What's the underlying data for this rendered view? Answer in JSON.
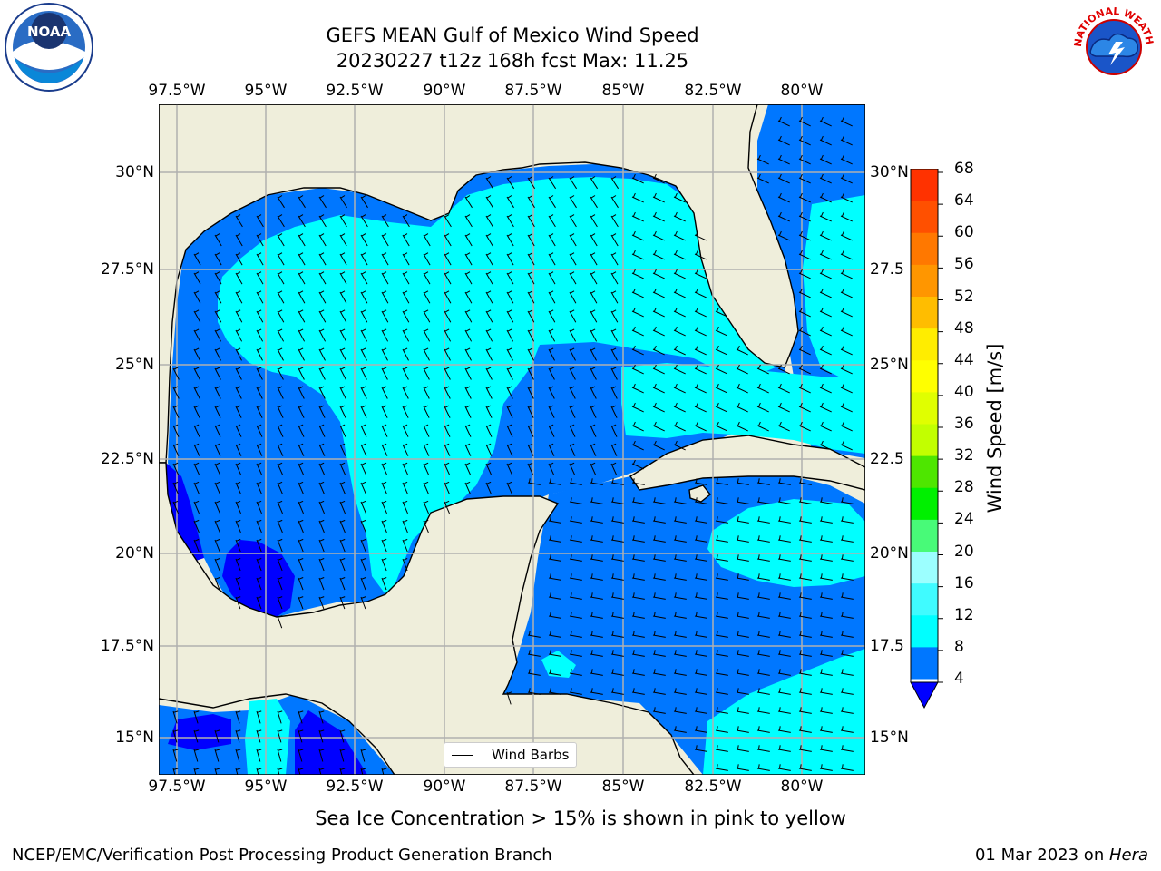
{
  "title": {
    "line1": "GEFS MEAN Gulf of Mexico Wind Speed",
    "line2": "20230227 t12z 168h fcst   Max: 11.25"
  },
  "map": {
    "lon_range": [
      -98,
      -78.2
    ],
    "lat_range": [
      14,
      31.8
    ],
    "lon_ticks": [
      "97.5°W",
      "95°W",
      "92.5°W",
      "90°W",
      "87.5°W",
      "85°W",
      "82.5°W",
      "80°W"
    ],
    "lat_ticks_left": [
      "30°N",
      "27.5°N",
      "25°N",
      "22.5°N",
      "20°N",
      "17.5°N",
      "15°N"
    ],
    "lat_ticks_right": [
      "30°N",
      "27.5",
      "25°N",
      "22.5",
      "20°N",
      "17.5",
      "15°N"
    ],
    "land_color": "#efeedb",
    "grid_color": "#b0b0b0"
  },
  "legend": {
    "label": "Wind Barbs"
  },
  "colorbar": {
    "label": "Wind Speed [m/s]",
    "levels": [
      "4",
      "8",
      "12",
      "16",
      "20",
      "24",
      "28",
      "32",
      "36",
      "40",
      "44",
      "48",
      "52",
      "56",
      "60",
      "64",
      "68"
    ],
    "colors": [
      "#0077ff",
      "#00ffff",
      "#40fbff",
      "#9cffff",
      "#48fa78",
      "#00f000",
      "#4ee600",
      "#c2ff00",
      "#e0ff00",
      "#ffff00",
      "#ffed00",
      "#ffbd00",
      "#ff9600",
      "#ff7800",
      "#ff5000",
      "#ff3200"
    ],
    "under_color": "#0000ff"
  },
  "wind_colors": {
    "band_4_8": "#0077ff",
    "band_8_12": "#00ffff",
    "under_4": "#0000ff"
  },
  "annotation": "Sea Ice Concentration > 15% is shown in pink to yellow",
  "footer": {
    "left": "NCEP/EMC/Verification Post Processing Product Generation Branch",
    "date": "01 Mar 2023 on ",
    "host": "Hera"
  },
  "logos": {
    "left": "NOAA",
    "right": "NATIONAL WEATHER SERVICE"
  }
}
